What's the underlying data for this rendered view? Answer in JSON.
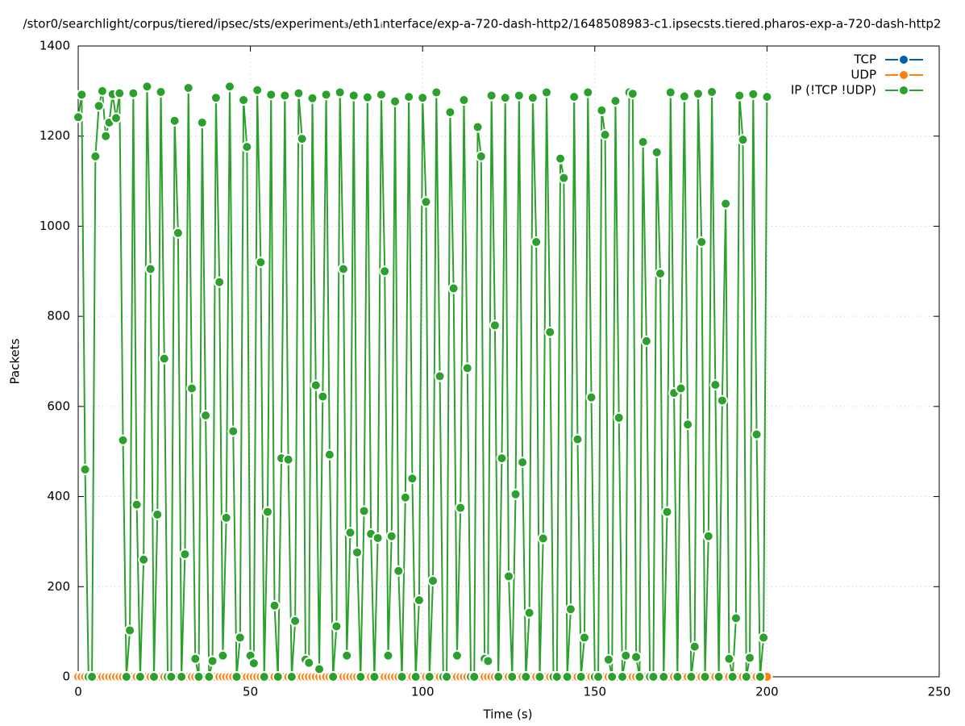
{
  "chart_data": {
    "type": "line",
    "title": "/stor0/searchlight/corpus/tiered/ipsec/sts/experiment₃/eth1ᵢnterface/exp-a-720-dash-http2/1648508983-c1.ipsecsts.tiered.pharos-exp-a-720-dash-http2",
    "x_label": "Time (s)",
    "y_label": "Packets",
    "xlim": [
      0,
      250
    ],
    "xticks": [
      0,
      50,
      100,
      150,
      200,
      250
    ],
    "ylim": [
      0,
      1400
    ],
    "yticks": [
      0,
      200,
      400,
      600,
      800,
      1000,
      1200,
      1400
    ],
    "grid": true,
    "legend": "top-right",
    "x": [
      0,
      1,
      2,
      3,
      4,
      5,
      6,
      7,
      8,
      9,
      10,
      11,
      12,
      13,
      14,
      15,
      16,
      17,
      18,
      19,
      20,
      21,
      22,
      23,
      24,
      25,
      26,
      27,
      28,
      29,
      30,
      31,
      32,
      33,
      34,
      35,
      36,
      37,
      38,
      39,
      40,
      41,
      42,
      43,
      44,
      45,
      46,
      47,
      48,
      49,
      50,
      51,
      52,
      53,
      54,
      55,
      56,
      57,
      58,
      59,
      60,
      61,
      62,
      63,
      64,
      65,
      66,
      67,
      68,
      69,
      70,
      71,
      72,
      73,
      74,
      75,
      76,
      77,
      78,
      79,
      80,
      81,
      82,
      83,
      84,
      85,
      86,
      87,
      88,
      89,
      90,
      91,
      92,
      93,
      94,
      95,
      96,
      97,
      98,
      99,
      100,
      101,
      102,
      103,
      104,
      105,
      106,
      107,
      108,
      109,
      110,
      111,
      112,
      113,
      114,
      115,
      116,
      117,
      118,
      119,
      120,
      121,
      122,
      123,
      124,
      125,
      126,
      127,
      128,
      129,
      130,
      131,
      132,
      133,
      134,
      135,
      136,
      137,
      138,
      139,
      140,
      141,
      142,
      143,
      144,
      145,
      146,
      147,
      148,
      149,
      150,
      151,
      152,
      153,
      154,
      155,
      156,
      157,
      158,
      159,
      160,
      161,
      162,
      163,
      164,
      165,
      166,
      167,
      168,
      169,
      170,
      171,
      172,
      173,
      174,
      175,
      176,
      177,
      178,
      179,
      180,
      181,
      182,
      183,
      184,
      185,
      186,
      187,
      188,
      189,
      190,
      191,
      192,
      193,
      194,
      195,
      196,
      197,
      198,
      199,
      200
    ],
    "series": [
      {
        "name": "TCP",
        "color": "#0060ad",
        "values": [
          0,
          0,
          0,
          0,
          0,
          0,
          0,
          0,
          0,
          0,
          0,
          0,
          0,
          0,
          0,
          0,
          0,
          0,
          0,
          0,
          0,
          0,
          0,
          0,
          0,
          0,
          0,
          0,
          0,
          0,
          0,
          0,
          0,
          0,
          0,
          0,
          0,
          0,
          0,
          0,
          0,
          0,
          0,
          0,
          0,
          0,
          0,
          0,
          0,
          0,
          0,
          0,
          0,
          0,
          0,
          0,
          0,
          0,
          0,
          0,
          0,
          0,
          0,
          0,
          0,
          0,
          0,
          0,
          0,
          0,
          0,
          0,
          0,
          0,
          0,
          0,
          0,
          0,
          0,
          0,
          0,
          0,
          0,
          0,
          0,
          0,
          0,
          0,
          0,
          0,
          0,
          0,
          0,
          0,
          0,
          0,
          0,
          0,
          0,
          0,
          0,
          0,
          0,
          0,
          0,
          0,
          0,
          0,
          0,
          0,
          0,
          0,
          0,
          0,
          0,
          0,
          0,
          0,
          0,
          0,
          0,
          0,
          0,
          0,
          0,
          0,
          0,
          0,
          0,
          0,
          0,
          0,
          0,
          0,
          0,
          0,
          0,
          0,
          0,
          0,
          0,
          0,
          0,
          0,
          0,
          0,
          0,
          0,
          0,
          0,
          0,
          0,
          0,
          0,
          0,
          0,
          0,
          0,
          0,
          0,
          0,
          0,
          0,
          0,
          0,
          0,
          0,
          0,
          0,
          0,
          0,
          0,
          0,
          0,
          0,
          0,
          0,
          0,
          0,
          0,
          0,
          0,
          0,
          0,
          0,
          0,
          0,
          0,
          0,
          0,
          0,
          0,
          0,
          0,
          0,
          0,
          0,
          0,
          0,
          0,
          0
        ]
      },
      {
        "name": "UDP",
        "color": "#ff7f0e",
        "values": [
          0,
          0,
          0,
          0,
          0,
          0,
          0,
          0,
          0,
          0,
          0,
          0,
          0,
          0,
          0,
          0,
          0,
          0,
          0,
          0,
          0,
          0,
          0,
          0,
          0,
          0,
          0,
          0,
          0,
          0,
          0,
          0,
          0,
          0,
          0,
          0,
          0,
          0,
          0,
          0,
          0,
          0,
          0,
          0,
          0,
          0,
          0,
          0,
          0,
          0,
          0,
          0,
          0,
          0,
          0,
          0,
          0,
          0,
          0,
          0,
          0,
          0,
          0,
          0,
          0,
          0,
          0,
          0,
          0,
          0,
          0,
          0,
          0,
          0,
          0,
          0,
          0,
          0,
          0,
          0,
          0,
          0,
          0,
          0,
          0,
          0,
          0,
          0,
          0,
          0,
          0,
          0,
          0,
          0,
          0,
          0,
          0,
          0,
          0,
          0,
          0,
          0,
          0,
          0,
          0,
          0,
          0,
          0,
          0,
          0,
          0,
          0,
          0,
          0,
          0,
          0,
          0,
          0,
          0,
          0,
          0,
          0,
          0,
          0,
          0,
          0,
          0,
          0,
          0,
          0,
          0,
          0,
          0,
          0,
          0,
          0,
          0,
          0,
          0,
          0,
          0,
          0,
          0,
          0,
          0,
          0,
          0,
          0,
          0,
          0,
          0,
          0,
          0,
          0,
          0,
          0,
          0,
          0,
          0,
          0,
          0,
          0,
          0,
          0,
          0,
          0,
          0,
          0,
          0,
          0,
          0,
          0,
          0,
          0,
          0,
          0,
          0,
          0,
          0,
          0,
          0,
          0,
          0,
          0,
          0,
          0,
          0,
          0,
          0,
          0,
          0,
          0,
          0,
          0,
          0,
          0,
          0,
          0,
          0,
          0,
          0
        ]
      },
      {
        "name": "IP (!TCP  !UDP)",
        "color": "#2ca02c",
        "values": [
          1242,
          1292,
          460,
          0,
          0,
          1155,
          1267,
          1300,
          1200,
          1230,
          1293,
          1240,
          1295,
          525,
          0,
          103,
          1295,
          382,
          0,
          260,
          1310,
          905,
          0,
          360,
          1298,
          706,
          0,
          0,
          1234,
          985,
          0,
          272,
          1307,
          640,
          40,
          0,
          1230,
          580,
          0,
          35,
          1285,
          876,
          47,
          353,
          1310,
          545,
          0,
          87,
          1280,
          1176,
          47,
          30,
          1302,
          920,
          0,
          366,
          1292,
          158,
          0,
          485,
          1290,
          482,
          0,
          124,
          1295,
          1194,
          38,
          31,
          1284,
          647,
          17,
          622,
          1292,
          493,
          0,
          112,
          1297,
          905,
          47,
          320,
          1290,
          276,
          0,
          368,
          1286,
          317,
          0,
          308,
          1292,
          900,
          47,
          312,
          1277,
          235,
          0,
          398,
          1287,
          440,
          0,
          170,
          1285,
          1054,
          0,
          213,
          1297,
          667,
          0,
          0,
          1253,
          862,
          47,
          375,
          1280,
          685,
          0,
          0,
          1220,
          1155,
          40,
          35,
          1290,
          780,
          0,
          485,
          1285,
          223,
          0,
          405,
          1290,
          476,
          0,
          142,
          1285,
          965,
          0,
          307,
          1297,
          765,
          0,
          0,
          1150,
          1107,
          0,
          150,
          1287,
          527,
          0,
          87,
          1297,
          620,
          0,
          0,
          1257,
          1203,
          38,
          0,
          1278,
          575,
          0,
          47,
          1297,
          1294,
          44,
          0,
          1187,
          745,
          0,
          0,
          1164,
          895,
          0,
          366,
          1297,
          630,
          0,
          640,
          1288,
          560,
          0,
          67,
          1294,
          965,
          0,
          312,
          1298,
          648,
          0,
          613,
          1050,
          40,
          0,
          130,
          1290,
          1192,
          0,
          42,
          1293,
          538,
          0,
          87,
          1287
        ]
      }
    ]
  }
}
